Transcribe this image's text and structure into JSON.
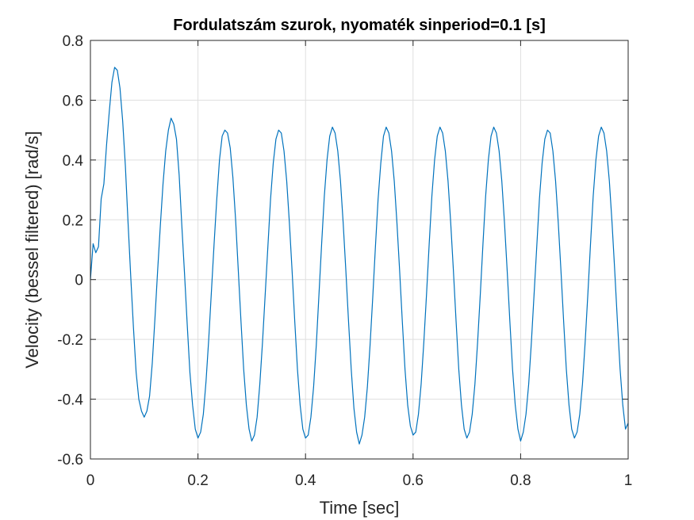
{
  "chart_data": {
    "type": "line",
    "title": "Fordulatszám szurok, nyomaték sinperiod=0.1 [s]",
    "xlabel": "Time [sec]",
    "ylabel": "Velocity (bessel filtered) [rad/s]",
    "xlim": [
      0,
      1
    ],
    "ylim": [
      -0.6,
      0.8
    ],
    "xticks": [
      0,
      0.2,
      0.4,
      0.6,
      0.8,
      1
    ],
    "xtick_labels": [
      "0",
      "0.2",
      "0.4",
      "0.6",
      "0.8",
      "1"
    ],
    "yticks": [
      -0.6,
      -0.4,
      -0.2,
      0,
      0.2,
      0.4,
      0.6,
      0.8
    ],
    "ytick_labels": [
      "-0.6",
      "-0.4",
      "-0.2",
      "0",
      "0.2",
      "0.4",
      "0.6",
      "0.8"
    ],
    "grid": true,
    "line_color": "#0072BD",
    "series": [
      {
        "x": [
          0,
          0.005,
          0.01,
          0.015,
          0.02,
          0.025,
          0.03,
          0.035,
          0.04,
          0.045,
          0.05,
          0.055,
          0.06,
          0.065,
          0.07,
          0.075,
          0.08,
          0.085,
          0.09,
          0.095,
          0.1,
          0.105,
          0.11,
          0.115,
          0.12,
          0.125,
          0.13,
          0.135,
          0.14,
          0.145,
          0.15,
          0.155,
          0.16,
          0.165,
          0.17,
          0.175,
          0.18,
          0.185,
          0.19,
          0.195,
          0.2,
          0.205,
          0.21,
          0.215,
          0.22,
          0.225,
          0.23,
          0.235,
          0.24,
          0.245,
          0.25,
          0.255,
          0.26,
          0.265,
          0.27,
          0.275,
          0.28,
          0.285,
          0.29,
          0.295,
          0.3,
          0.305,
          0.31,
          0.315,
          0.32,
          0.325,
          0.33,
          0.335,
          0.34,
          0.345,
          0.35,
          0.355,
          0.36,
          0.365,
          0.37,
          0.375,
          0.38,
          0.385,
          0.39,
          0.395,
          0.4,
          0.405,
          0.41,
          0.415,
          0.42,
          0.425,
          0.43,
          0.435,
          0.44,
          0.445,
          0.45,
          0.455,
          0.46,
          0.465,
          0.47,
          0.475,
          0.48,
          0.485,
          0.49,
          0.495,
          0.5,
          0.505,
          0.51,
          0.515,
          0.52,
          0.525,
          0.53,
          0.535,
          0.54,
          0.545,
          0.55,
          0.555,
          0.56,
          0.565,
          0.57,
          0.575,
          0.58,
          0.585,
          0.59,
          0.595,
          0.6,
          0.605,
          0.61,
          0.615,
          0.62,
          0.625,
          0.63,
          0.635,
          0.64,
          0.645,
          0.65,
          0.655,
          0.66,
          0.665,
          0.67,
          0.675,
          0.68,
          0.685,
          0.69,
          0.695,
          0.7,
          0.705,
          0.71,
          0.715,
          0.72,
          0.725,
          0.73,
          0.735,
          0.74,
          0.745,
          0.75,
          0.755,
          0.76,
          0.765,
          0.77,
          0.775,
          0.78,
          0.785,
          0.79,
          0.795,
          0.8,
          0.805,
          0.81,
          0.815,
          0.82,
          0.825,
          0.83,
          0.835,
          0.84,
          0.845,
          0.85,
          0.855,
          0.86,
          0.865,
          0.87,
          0.875,
          0.88,
          0.885,
          0.89,
          0.895,
          0.9,
          0.905,
          0.91,
          0.915,
          0.92,
          0.925,
          0.93,
          0.935,
          0.94,
          0.945,
          0.95,
          0.955,
          0.96,
          0.965,
          0.97,
          0.975,
          0.98,
          0.985,
          0.99,
          0.995,
          1.0
        ],
        "y": [
          0.0,
          0.12,
          0.09,
          0.11,
          0.27,
          0.32,
          0.45,
          0.56,
          0.66,
          0.71,
          0.7,
          0.64,
          0.53,
          0.38,
          0.19,
          0.01,
          -0.16,
          -0.31,
          -0.4,
          -0.44,
          -0.46,
          -0.44,
          -0.39,
          -0.28,
          -0.13,
          0.03,
          0.18,
          0.32,
          0.43,
          0.5,
          0.54,
          0.52,
          0.47,
          0.35,
          0.18,
          0.02,
          -0.15,
          -0.31,
          -0.42,
          -0.5,
          -0.53,
          -0.51,
          -0.45,
          -0.34,
          -0.2,
          -0.04,
          0.12,
          0.27,
          0.4,
          0.48,
          0.5,
          0.49,
          0.44,
          0.34,
          0.2,
          0.03,
          -0.14,
          -0.3,
          -0.42,
          -0.5,
          -0.54,
          -0.52,
          -0.46,
          -0.35,
          -0.21,
          -0.05,
          0.11,
          0.27,
          0.39,
          0.47,
          0.5,
          0.49,
          0.43,
          0.33,
          0.19,
          0.03,
          -0.14,
          -0.3,
          -0.42,
          -0.5,
          -0.53,
          -0.52,
          -0.46,
          -0.36,
          -0.22,
          -0.05,
          0.12,
          0.28,
          0.4,
          0.48,
          0.51,
          0.49,
          0.43,
          0.33,
          0.19,
          0.03,
          -0.14,
          -0.3,
          -0.43,
          -0.51,
          -0.55,
          -0.52,
          -0.46,
          -0.36,
          -0.22,
          -0.06,
          0.11,
          0.27,
          0.39,
          0.48,
          0.51,
          0.49,
          0.43,
          0.33,
          0.19,
          0.03,
          -0.14,
          -0.3,
          -0.42,
          -0.49,
          -0.52,
          -0.51,
          -0.45,
          -0.35,
          -0.21,
          -0.05,
          0.12,
          0.28,
          0.4,
          0.48,
          0.51,
          0.49,
          0.43,
          0.33,
          0.19,
          0.03,
          -0.14,
          -0.3,
          -0.42,
          -0.5,
          -0.53,
          -0.51,
          -0.45,
          -0.35,
          -0.21,
          -0.05,
          0.12,
          0.28,
          0.4,
          0.48,
          0.51,
          0.49,
          0.43,
          0.33,
          0.19,
          0.03,
          -0.14,
          -0.3,
          -0.42,
          -0.5,
          -0.54,
          -0.51,
          -0.45,
          -0.35,
          -0.21,
          -0.05,
          0.11,
          0.27,
          0.39,
          0.47,
          0.5,
          0.49,
          0.43,
          0.33,
          0.19,
          0.03,
          -0.14,
          -0.3,
          -0.42,
          -0.5,
          -0.53,
          -0.51,
          -0.45,
          -0.35,
          -0.21,
          -0.05,
          0.12,
          0.28,
          0.4,
          0.48,
          0.51,
          0.49,
          0.43,
          0.33,
          0.19,
          0.03,
          -0.14,
          -0.3,
          -0.42,
          -0.5,
          -0.48
        ]
      }
    ]
  }
}
